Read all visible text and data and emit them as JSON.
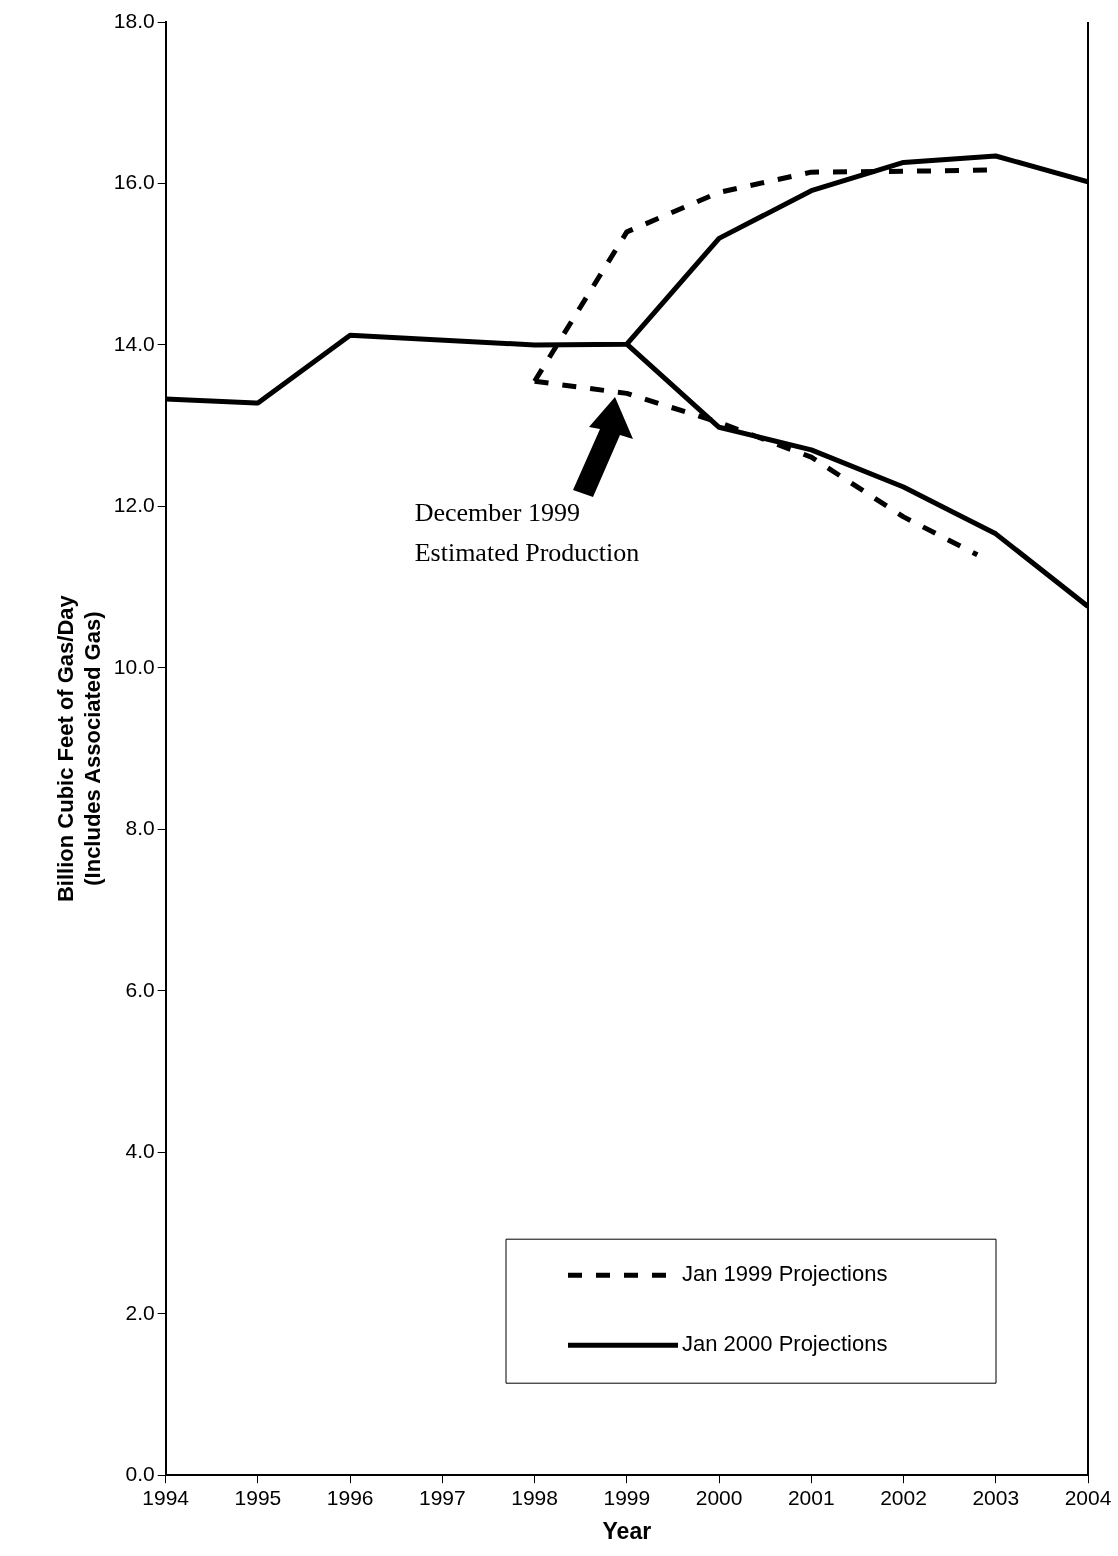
{
  "chart_data": {
    "type": "line",
    "xlabel": "Year",
    "ylabel": "Billion Cubic Feet of Gas/Day (Includes Associated Gas)",
    "xlim": [
      1994,
      2004
    ],
    "xticks": [
      1994,
      1995,
      1996,
      1997,
      1998,
      1999,
      2000,
      2001,
      2002,
      2003,
      2004
    ],
    "ylim": [
      0,
      18
    ],
    "yticks": [
      {
        "value": 0,
        "label": "0.0"
      },
      {
        "value": 2,
        "label": "2.0"
      },
      {
        "value": 4,
        "label": "4.0"
      },
      {
        "value": 6,
        "label": "6.0"
      },
      {
        "value": 8,
        "label": "8.0"
      },
      {
        "value": 10,
        "label": "10.0"
      },
      {
        "value": 12,
        "label": "12.0"
      },
      {
        "value": 14,
        "label": "14.0"
      },
      {
        "value": 16,
        "label": "16.0"
      },
      {
        "value": 18,
        "label": "18.0"
      }
    ],
    "grid": false,
    "legend": "bottom right",
    "marker": "none",
    "series": [
      {
        "name": "Jan 1999 Projections",
        "color": "#000000",
        "line_style": "dashed",
        "x": [
          1998,
          1999,
          2000,
          2001,
          2002,
          2003
        ],
        "values": [
          13.55,
          15.4,
          15.89,
          16.14,
          16.15,
          16.17
        ]
      },
      {
        "color": "#000000",
        "line_style": "dashed",
        "x": [
          1998,
          1999,
          2000,
          2001,
          2002,
          2002.8
        ],
        "values": [
          13.55,
          13.4,
          13.04,
          12.61,
          11.87,
          11.4
        ]
      },
      {
        "name": "Jan 2000 Projections",
        "color": "#000000",
        "line_style": "solid",
        "x": [
          1994,
          1995,
          1996,
          1998,
          1999,
          2000,
          2001,
          2002,
          2003,
          2004
        ],
        "values": [
          13.33,
          13.28,
          14.12,
          14.0,
          14.01,
          15.32,
          15.91,
          16.26,
          16.34,
          16.02
        ]
      },
      {
        "color": "#000000",
        "line_style": "solid",
        "x": [
          1999,
          2000,
          2001,
          2002,
          2003,
          2004
        ],
        "values": [
          14.01,
          12.98,
          12.7,
          12.24,
          11.66,
          10.76
        ]
      }
    ],
    "annotations": [
      "December 1999 Estimated Production"
    ]
  }
}
